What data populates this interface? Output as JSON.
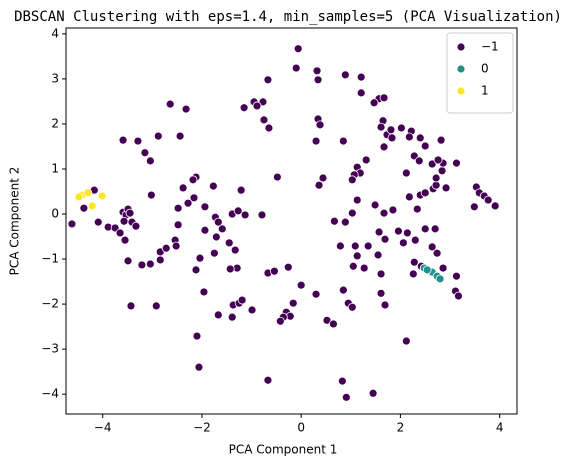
{
  "chart_data": {
    "type": "scatter",
    "title": "DBSCAN Clustering with eps=1.4, min_samples=5 (PCA Visualization)",
    "x_label": "PCA Component 1",
    "y_label": "PCA Component 2",
    "xlim": [
      -4.74,
      4.35
    ],
    "ylim": [
      -4.44,
      4.13
    ],
    "xticks": [
      {
        "value": -4,
        "label": "−4"
      },
      {
        "value": -2,
        "label": "−2"
      },
      0,
      2,
      4
    ],
    "yticks": [
      {
        "value": -4,
        "label": "−4"
      },
      {
        "value": -3,
        "label": "−3"
      },
      {
        "value": -2,
        "label": "−2"
      },
      {
        "value": -1,
        "label": "−1"
      },
      0,
      1,
      2,
      3,
      4
    ],
    "legend": "upper right",
    "series": [
      {
        "name": "−1",
        "color": "#440154",
        "x": [
          -4.62,
          -4.38,
          -4.17,
          -4.09,
          -3.59,
          -3.29,
          -3.15,
          -3.04,
          -3.02,
          -2.64,
          -2.32,
          -2.44,
          -2.88,
          -3.89,
          -3.75,
          -3.65,
          -3.59,
          -3.53,
          -3.49,
          -3.45,
          -3.57,
          -3.41,
          -3.33,
          -3.55,
          -3.49,
          -3.21,
          -3.04,
          -2.84,
          -2.72,
          -2.84,
          -2.54,
          -2.48,
          -2.48,
          -2.28,
          -2.16,
          -1.94,
          -2.38,
          -2.12,
          -2.18,
          -1.77,
          -1.73,
          -1.67,
          -1.39,
          -1.27,
          -1.13,
          -0.79,
          -1.33,
          -1.29,
          -1.45,
          -1.71,
          -1.59,
          -1.94,
          -2.52,
          -2.04,
          -1.75,
          -2.12,
          -3.43,
          -2.92,
          -2.1,
          -2.06,
          -1.96,
          -1.67,
          -1.37,
          -1.25,
          -1.39,
          -0.99,
          -1.19,
          -0.67,
          -0.54,
          -0.26,
          0,
          -0.16,
          -0.3,
          -0.22,
          -0.36,
          -0.42,
          0.3,
          0.52,
          0.65,
          -0.67,
          0.83,
          0.91,
          1.45,
          2.12,
          1.69,
          1.61,
          1.61,
          1.27,
          1.05,
          0.85,
          0.95,
          1.03,
          1.55,
          1.69,
          1.96,
          2.14,
          2.3,
          2.06,
          2.5,
          2.7,
          2.64,
          2.74,
          2.86,
          3.13,
          2.28,
          2.42,
          2.26,
          3.11,
          3.17,
          1.57,
          1.35,
          1.09,
          1.13,
          0.79,
          0.89,
          0.67,
          1.03,
          1.13,
          1.49,
          1.67,
          1.85,
          2.18,
          2.34,
          2.4,
          2.5,
          2.66,
          2.72,
          2.92,
          2.72,
          2.84,
          2.64,
          2.86,
          3.13,
          2.76,
          2.82,
          2.5,
          2.4,
          2.22,
          2.02,
          2.18,
          2.28,
          2.12,
          1.65,
          1.61,
          1.73,
          1.81,
          1.83,
          1.57,
          1.67,
          1.67,
          2.38,
          3.53,
          3.59,
          3.69,
          3.77,
          3.91,
          3.49,
          1.13,
          1.19,
          1.07,
          1.03,
          1.31,
          0.85,
          0.3,
          0.89,
          1.21,
          1.47,
          1.21,
          0.32,
          -0.1,
          -0.06,
          0.34,
          0.34,
          0.38,
          0.44,
          0.36,
          -0.48,
          -0.75,
          -0.67,
          -0.77,
          -0.95,
          -0.89,
          -1.15,
          -0.65,
          -1.21,
          -1.43
        ],
        "values": [
          -0.22,
          0.13,
          0.53,
          -0.18,
          1.64,
          1.62,
          1.36,
          1.18,
          0.42,
          2.44,
          2.33,
          1.73,
          1.73,
          -0.29,
          -0.31,
          -0.42,
          0.04,
          -0.02,
          0.11,
          0.02,
          -0.16,
          -0.18,
          -0.27,
          -0.58,
          -1.04,
          -1.13,
          -1.11,
          -0.84,
          -0.76,
          -1.02,
          -0.58,
          -0.24,
          0.13,
          0.24,
          0.36,
          0.16,
          0.58,
          0.82,
          0.76,
          0.62,
          -0.07,
          -0.18,
          0,
          0.07,
          -0.02,
          -0.02,
          -0.8,
          -1.2,
          -0.64,
          -0.51,
          -0.33,
          -0.36,
          -0.71,
          -0.98,
          -0.87,
          -1.24,
          -2.04,
          -2.04,
          -2.71,
          -3.4,
          -1.73,
          -2.24,
          -2.02,
          -1.98,
          -2.29,
          -2.13,
          -1.91,
          -1.31,
          -1.27,
          -1.18,
          -1.58,
          -1.98,
          -2.18,
          -2.27,
          -2.29,
          -2.38,
          -1.78,
          -2.36,
          -2.44,
          -3.69,
          -3.71,
          -4.07,
          -3.98,
          -2.82,
          -2.02,
          -1.76,
          -1.33,
          -1.2,
          -1.16,
          -1.69,
          -1.98,
          -2.07,
          -0.91,
          -0.56,
          -0.38,
          -0.42,
          -0.58,
          -0.64,
          -0.33,
          -0.33,
          -0.73,
          -0.87,
          -1.2,
          -1.38,
          -1.07,
          -1.16,
          -1.33,
          -1.71,
          -1.82,
          -0.4,
          -0.71,
          -0.71,
          -0.93,
          -0.71,
          -0.18,
          -0.16,
          0.02,
          0.31,
          0.2,
          0.02,
          0.09,
          0.38,
          0.11,
          0.42,
          0.47,
          0.56,
          0.64,
          0.58,
          0.8,
          0.96,
          1.11,
          1.13,
          1.13,
          1.2,
          1.64,
          1.51,
          1.69,
          1.84,
          1.91,
          1.71,
          1.29,
          0.91,
          2.07,
          1.93,
          1.76,
          1.87,
          1.69,
          2.56,
          2.58,
          1.49,
          1.18,
          0.6,
          0.47,
          0.4,
          0.31,
          0.18,
          0.16,
          1.04,
          0.91,
          0.87,
          0.76,
          1.2,
          1.62,
          1.62,
          3.09,
          3.04,
          2.47,
          2.69,
          3.18,
          3.24,
          3.67,
          2.98,
          2.11,
          1.98,
          0.8,
          0.64,
          0.82,
          2.09,
          2.98,
          2.49,
          2.49,
          2.4,
          2.36,
          1.91,
          0.53,
          -1.22
        ]
      },
      {
        "name": "0",
        "color": "#21918c",
        "x": [
          2.48,
          2.64,
          2.74,
          2.54,
          2.8
        ],
        "values": [
          -1.2,
          -1.29,
          -1.38,
          -1.24,
          -1.44
        ]
      },
      {
        "name": "1",
        "color": "#fde725",
        "x": [
          -4.42,
          -4.3,
          -4.21,
          -4.01,
          -4.48
        ],
        "values": [
          0.42,
          0.47,
          0.18,
          0.4,
          0.38
        ]
      }
    ]
  }
}
